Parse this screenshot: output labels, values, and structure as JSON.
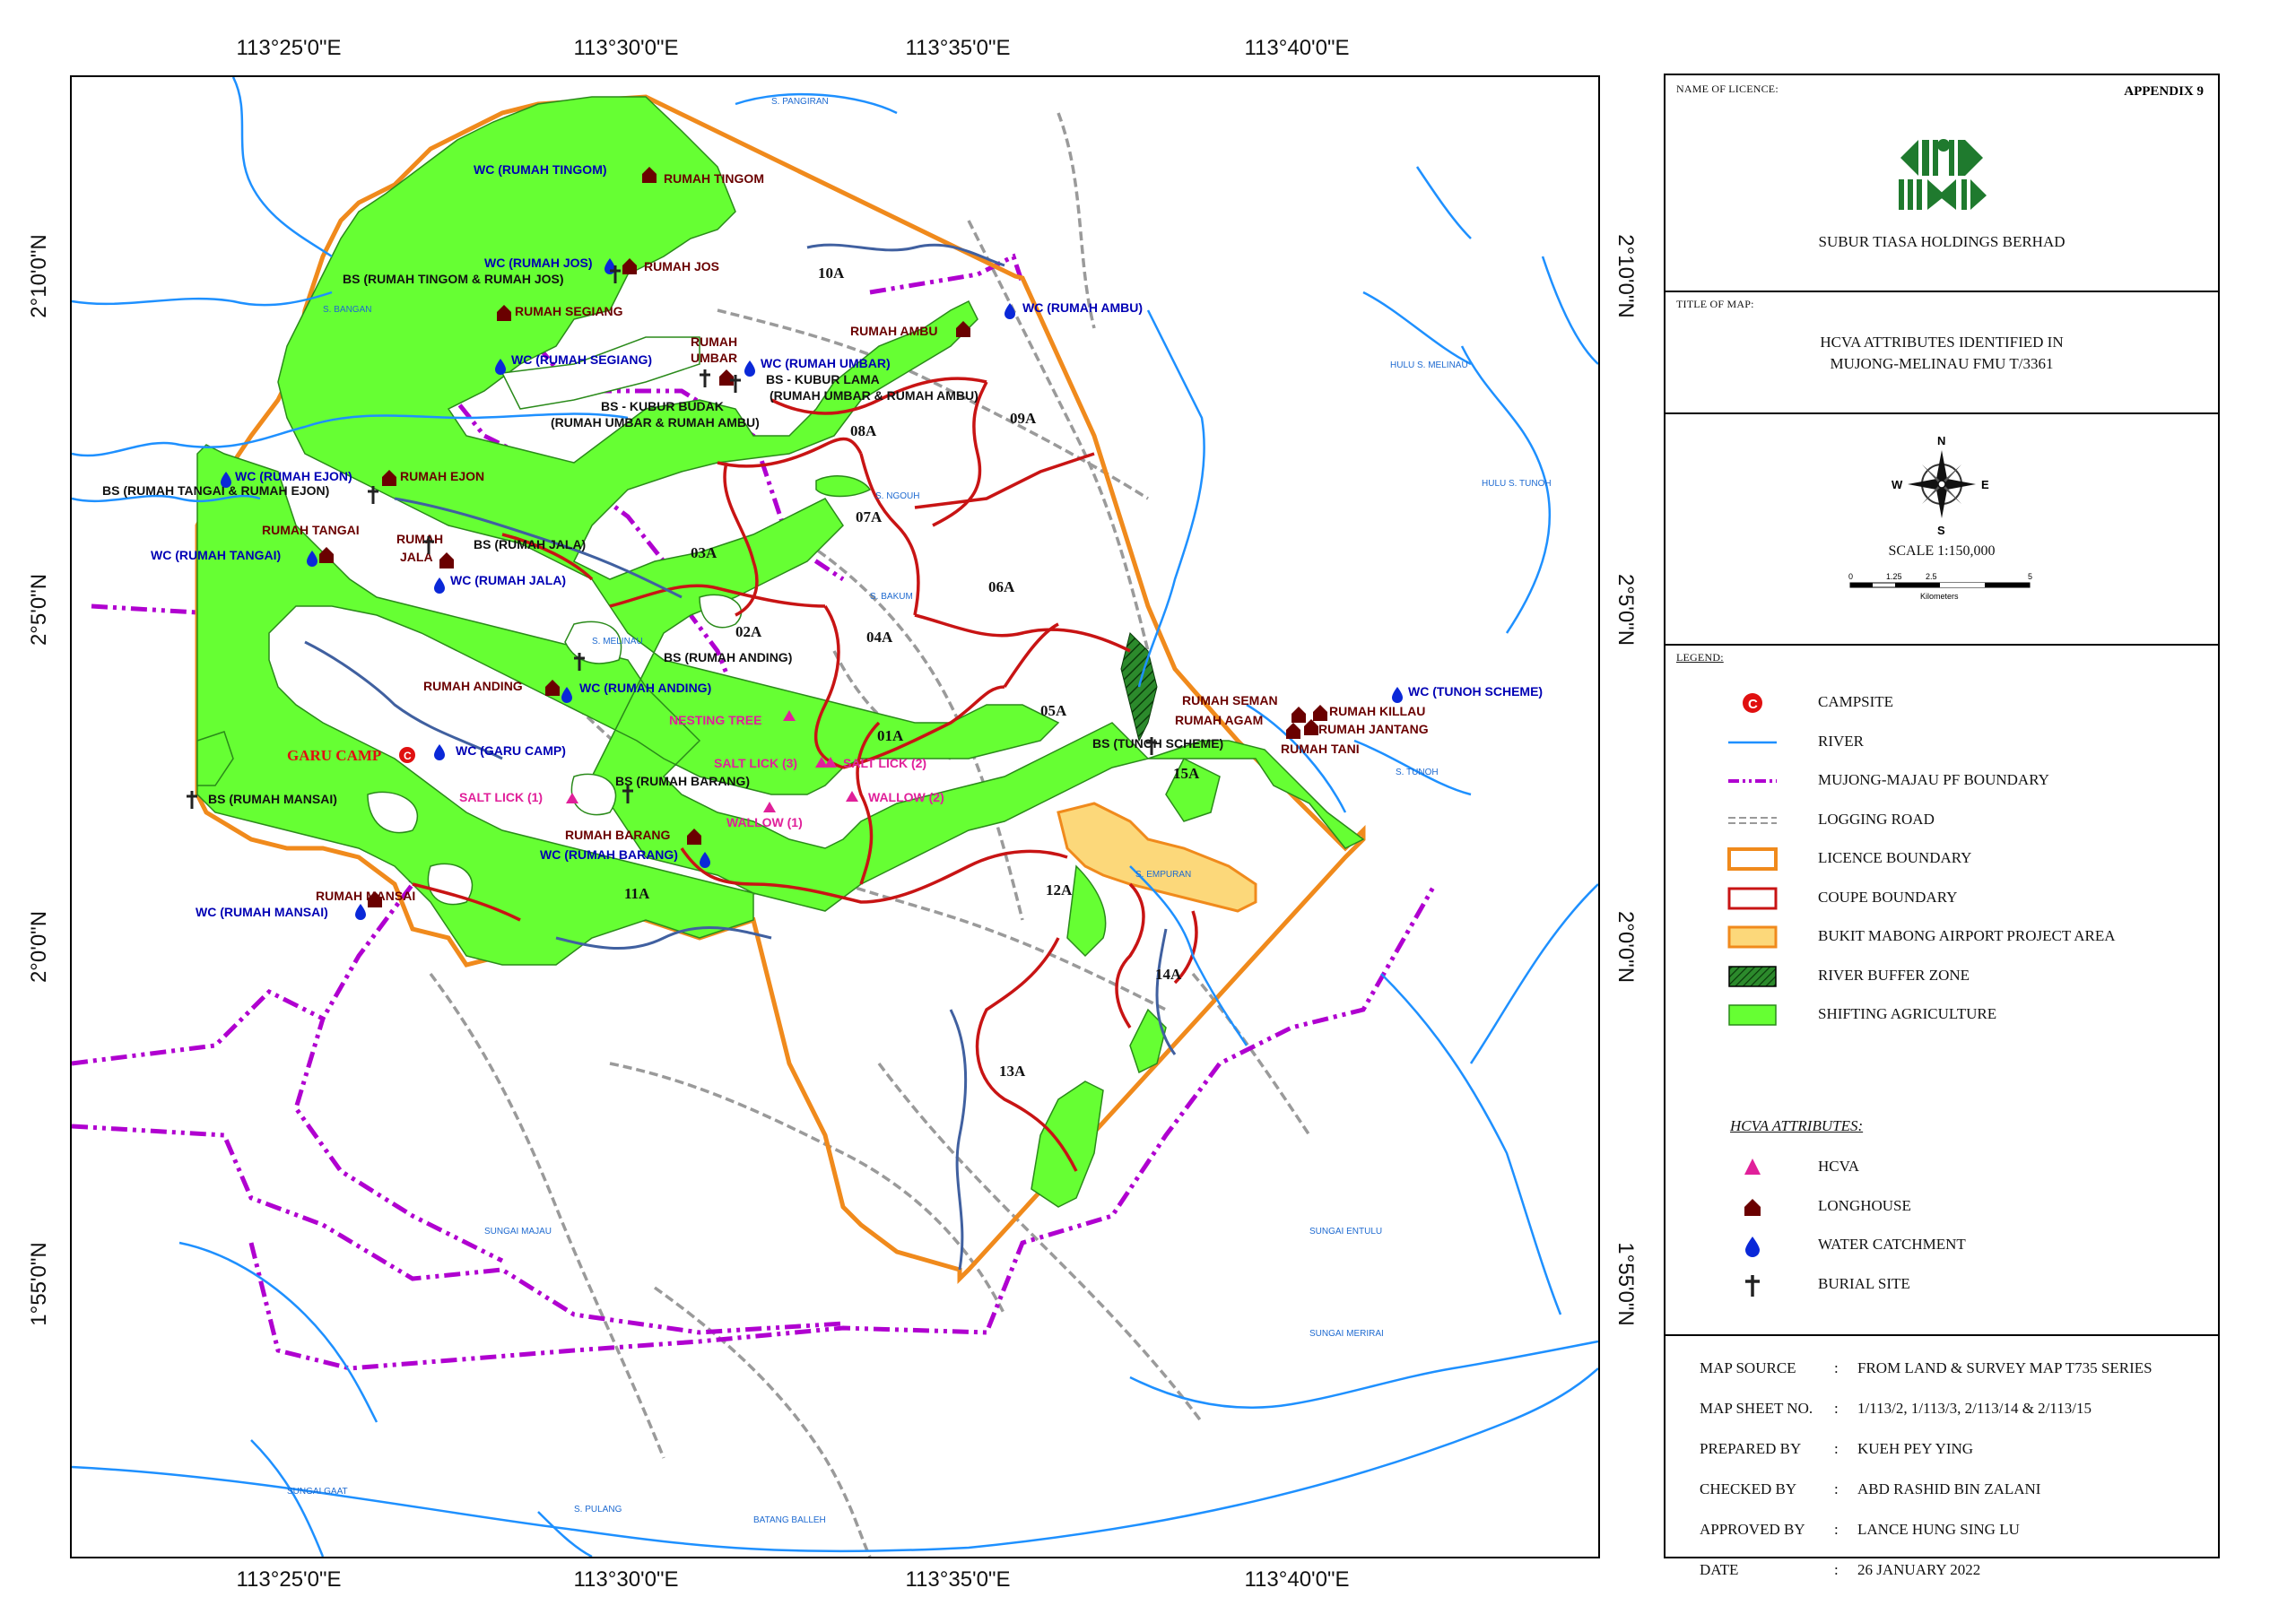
{
  "coords": {
    "top": [
      "113°25'0\"E",
      "113°30'0\"E",
      "113°35'0\"E",
      "113°40'0\"E"
    ],
    "bottom": [
      "113°25'0\"E",
      "113°30'0\"E",
      "113°35'0\"E",
      "113°40'0\"E"
    ],
    "left": [
      "2°10'0\"N",
      "2°5'0\"N",
      "2°0'0\"N",
      "1°55'0\"N"
    ],
    "right": [
      "2°10'0\"N",
      "2°5'0\"N",
      "2°0'0\"N",
      "1°55'0\"N"
    ]
  },
  "map_labels": {
    "compartments": [
      "10A",
      "09A",
      "08A",
      "07A",
      "06A",
      "05A",
      "04A",
      "03A",
      "02A",
      "01A",
      "11A",
      "12A",
      "13A",
      "14A",
      "15A"
    ],
    "wc": [
      "WC (RUMAH TINGOM)",
      "WC (RUMAH JOS)",
      "WC (RUMAH SEGIANG)",
      "WC (RUMAH UMBAR)",
      "WC (RUMAH AMBU)",
      "WC (RUMAH EJON)",
      "WC (RUMAH TANGAI)",
      "WC (RUMAH JALA)",
      "WC (RUMAH ANDING)",
      "WC (GARU CAMP)",
      "WC (RUMAH BARANG)",
      "WC (RUMAH MANSAI)",
      "WC (TUNOH SCHEME)"
    ],
    "bs": [
      "BS (RUMAH TINGOM & RUMAH JOS)",
      "BS (RUMAH TANGAI & RUMAH EJON)",
      "BS (RUMAH JALA)",
      "BS (RUMAH ANDING)",
      "BS (RUMAH BARANG)",
      "BS (RUMAH MANSAI)",
      "BS (TUNOH SCHEME)",
      "BS - KUBUR LAMA",
      "(RUMAH UMBAR & RUMAH AMBU)",
      "BS - KUBUR BUDAK",
      "(RUMAH UMBAR & RUMAH AMBU)"
    ],
    "longhouses": [
      "RUMAH TINGOM",
      "RUMAH JOS",
      "RUMAH SEGIANG",
      "RUMAH AMBU",
      "RUMAH",
      "UMBAR",
      "RUMAH EJON",
      "RUMAH TANGAI",
      "RUMAH",
      "JALA",
      "RUMAH ANDING",
      "RUMAH BARANG",
      "RUMAH MANSAI",
      "RUMAH SEMAN",
      "RUMAH AGAM",
      "RUMAH KILLAU",
      "RUMAH JANTANG",
      "RUMAH TANI"
    ],
    "hcva": [
      "NESTING TREE",
      "SALT LICK (3)",
      "SALT LICK (2)",
      "SALT LICK (1)",
      "WALLOW (2)",
      "WALLOW (1)"
    ],
    "camp": "GARU CAMP",
    "rivers": [
      "S. PANGIRAN",
      "S. BANGAN",
      "HULU S. MELINAU",
      "HULU S. TUNOH",
      "S. MELINAU",
      "S. NGOUH",
      "S. BAKUM",
      "S. TUNOH",
      "S. EMPURAN",
      "SUNGAI ENTULU",
      "SUNGAI MERIRAI",
      "SUNGAI MAJAU",
      "SUNGAI GAAT",
      "S. PULANG",
      "BATANG BALLEH"
    ]
  },
  "panel": {
    "name_caption": "NAME OF LICENCE:",
    "appendix": "APPENDIX 9",
    "company": "SUBUR TIASA HOLDINGS BERHAD",
    "title_caption": "TITLE OF MAP:",
    "title_line1": "HCVA ATTRIBUTES IDENTIFIED IN",
    "title_line2": "MUJONG-MELINAU FMU T/3361",
    "north": "N",
    "south": "S",
    "east": "E",
    "west": "W",
    "scale": "SCALE   1:150,000",
    "scale_ticks": [
      "0",
      "1.25",
      "2.5",
      "5"
    ],
    "scale_unit": "Kilometers",
    "legend_caption": "LEGEND:",
    "legend": [
      {
        "label": "CAMPSITE",
        "symbol": "campsite"
      },
      {
        "label": "RIVER",
        "symbol": "river"
      },
      {
        "label": "MUJONG-MAJAU PF BOUNDARY",
        "symbol": "pf-boundary"
      },
      {
        "label": "LOGGING ROAD",
        "symbol": "logging-road"
      },
      {
        "label": "LICENCE BOUNDARY",
        "symbol": "licence-boundary"
      },
      {
        "label": "COUPE BOUNDARY",
        "symbol": "coupe-boundary"
      },
      {
        "label": "BUKIT MABONG AIRPORT PROJECT AREA",
        "symbol": "airport-area"
      },
      {
        "label": "RIVER BUFFER ZONE",
        "symbol": "river-buffer"
      },
      {
        "label": "SHIFTING AGRICULTURE",
        "symbol": "shifting-agriculture"
      }
    ],
    "hcva_heading": "HCVA ATTRIBUTES:",
    "hcva_legend": [
      {
        "label": "HCVA",
        "symbol": "hcva-triangle"
      },
      {
        "label": "LONGHOUSE",
        "symbol": "longhouse"
      },
      {
        "label": "WATER CATCHMENT",
        "symbol": "water-drop"
      },
      {
        "label": "BURIAL SITE",
        "symbol": "cross"
      }
    ],
    "source": [
      {
        "label": "MAP SOURCE",
        "value": "FROM LAND & SURVEY MAP T735 SERIES"
      },
      {
        "label": "MAP SHEET NO.",
        "value": "1/113/2, 1/113/3, 2/113/14 & 2/113/15"
      },
      {
        "label": "PREPARED BY",
        "value": "KUEH PEY YING"
      },
      {
        "label": "CHECKED BY",
        "value": "ABD RASHID BIN ZALANI"
      },
      {
        "label": "APPROVED BY",
        "value": "LANCE HUNG SING LU"
      },
      {
        "label": "DATE",
        "value": "26 JANUARY 2022"
      }
    ]
  },
  "colors": {
    "agriculture": "#66ff33",
    "river": "#1e90ff",
    "pf_boundary": "#b000d0",
    "licence_boundary": "#f08a1c",
    "coupe_boundary": "#c81414",
    "airport_area": "#fcd87a",
    "logo_green": "#1f7a2e",
    "wc_blue": "#0000b4",
    "longhouse_red": "#6a0000",
    "hcva_pink": "#e0209a"
  }
}
